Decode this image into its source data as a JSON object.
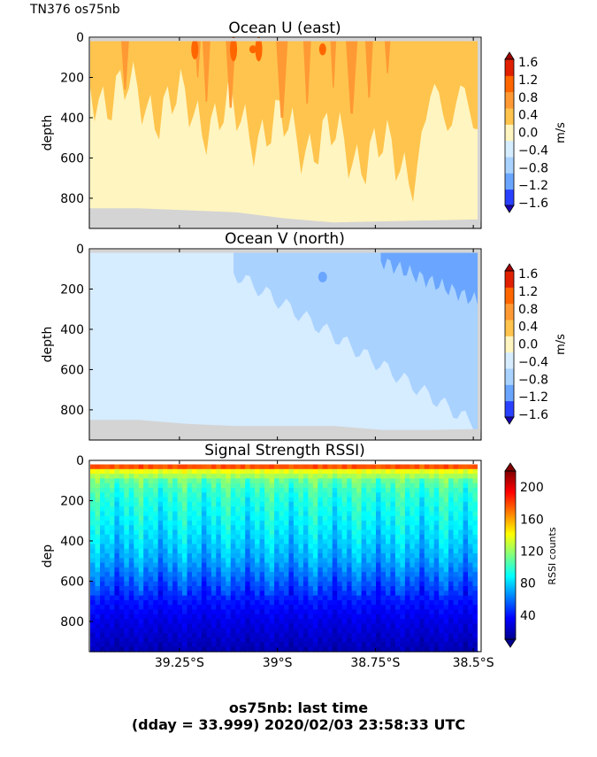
{
  "header_label": "TN376 os75nb",
  "footer": {
    "line1": "os75nb: last time",
    "line2": "(dday = 33.999) 2020/02/03 23:58:33 UTC"
  },
  "chart_data": [
    {
      "type": "heatmap",
      "title": "Ocean U (east)",
      "ylabel": "depth",
      "yticks": [
        "0",
        "200",
        "400",
        "600",
        "800"
      ],
      "ylim": [
        950,
        0
      ],
      "xlim": [
        -39.48,
        -38.48
      ],
      "colorbar": {
        "label": "m/s",
        "ticks": [
          "1.6",
          "1.2",
          "0.8",
          "0.4",
          "0.0",
          "−0.4",
          "−0.8",
          "−1.2",
          "−1.6"
        ],
        "colors": [
          "#1a00b0",
          "#2a40ff",
          "#6aa6ff",
          "#a9d2ff",
          "#d6ecff",
          "#fff5c0",
          "#ffc44d",
          "#ff9933",
          "#ff6600",
          "#e02000",
          "#a00000"
        ]
      },
      "profile_max_depth_m": 880,
      "bottom_depth_m": [
        850,
        850,
        860,
        870,
        900,
        920,
        915,
        910,
        905
      ]
    },
    {
      "type": "heatmap",
      "title": "Ocean V (north)",
      "ylabel": "depth",
      "yticks": [
        "0",
        "200",
        "400",
        "600",
        "800"
      ],
      "ylim": [
        950,
        0
      ],
      "xlim": [
        -39.48,
        -38.48
      ],
      "colorbar": {
        "label": "m/s",
        "ticks": [
          "1.6",
          "1.2",
          "0.8",
          "0.4",
          "0.0",
          "−0.4",
          "−0.8",
          "−1.2",
          "−1.6"
        ],
        "colors": [
          "#1a00b0",
          "#2a40ff",
          "#6aa6ff",
          "#a9d2ff",
          "#d6ecff",
          "#fff5c0",
          "#ffc44d",
          "#ff9933",
          "#ff6600",
          "#e02000",
          "#a00000"
        ]
      },
      "bottom_depth_m": [
        850,
        850,
        870,
        880,
        880,
        880,
        900,
        900,
        895
      ]
    },
    {
      "type": "heatmap",
      "title": "Signal Strength RSSI)",
      "ylabel": "dep",
      "yticks": [
        "0",
        "200",
        "400",
        "600",
        "800"
      ],
      "ylim": [
        950,
        0
      ],
      "xlim": [
        -39.48,
        -38.48
      ],
      "xticks": [
        "39.25°S",
        "39°S",
        "38.75°S",
        "38.5°S"
      ],
      "xtick_values": [
        -39.25,
        -39.0,
        -38.75,
        -38.5
      ],
      "colorbar": {
        "label": "RSSI counts",
        "ticks": [
          "200",
          "160",
          "120",
          "80",
          "40"
        ],
        "tick_values": [
          200,
          160,
          120,
          80,
          40
        ],
        "range": [
          10,
          220
        ]
      },
      "rssi_profile_depths_m": [
        20,
        50,
        100,
        150,
        200,
        300,
        400,
        500,
        600,
        700,
        800,
        900,
        950
      ],
      "rssi_profile_counts": [
        200,
        140,
        110,
        100,
        95,
        88,
        80,
        70,
        55,
        40,
        30,
        22,
        18
      ]
    }
  ]
}
